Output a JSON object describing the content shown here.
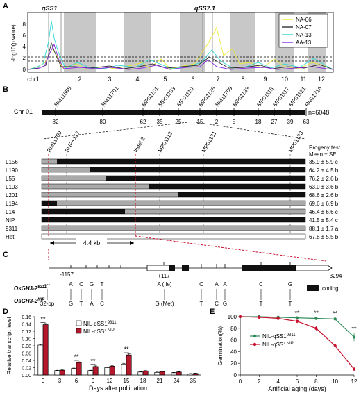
{
  "panels": [
    "A",
    "B",
    "C",
    "D",
    "E"
  ],
  "panelA": {
    "ylabel": "-log10(p value)",
    "yticks": [
      "8",
      "6",
      "4",
      "2",
      "0"
    ],
    "chromosomes": [
      "chr1",
      "2",
      "3",
      "4",
      "5",
      "6",
      "7",
      "8",
      "9",
      "10",
      "11",
      "12"
    ],
    "qtl_labels": [
      "qSS1",
      "qSS7.1"
    ],
    "legend": [
      {
        "name": "NA-06",
        "color": "#e8e832"
      },
      {
        "name": "NA-07",
        "color": "#303030"
      },
      {
        "name": "NA-13",
        "color": "#2ed6d6"
      },
      {
        "name": "AA-13",
        "color": "#8a2be2"
      }
    ]
  },
  "panelB": {
    "chromosome_label": "Chr 01",
    "n_label": "n=6048",
    "markers_top": [
      "RM11698",
      "RM11701",
      "MP01101",
      "MP01103",
      "MP01110",
      "MP01125",
      "RM11709",
      "MP01133",
      "MP01116",
      "MP01117",
      "MP01121",
      "RM11716"
    ],
    "recombinants": [
      "82",
      "80",
      "62",
      "35",
      "25",
      "15",
      "2",
      "5",
      "18",
      "27",
      "39",
      "63"
    ],
    "markers_fine": [
      "RM11709",
      "SNP+117",
      "Indel 2",
      "MP01113",
      "MP01131",
      "MP01133"
    ],
    "progeny_header": [
      "Progeny test",
      "Mean ± SE"
    ],
    "scale_label": "4.4 kb",
    "lines": [
      {
        "name": "L156",
        "value": "35.9 ± 5.9 c"
      },
      {
        "name": "L190",
        "value": "64.2 ± 4.5 b"
      },
      {
        "name": "L55",
        "value": "76.2 ± 2.6 b"
      },
      {
        "name": "L103",
        "value": "63.0 ± 3.6 b"
      },
      {
        "name": "L201",
        "value": "68.6 ± 2.6 b"
      },
      {
        "name": "L194",
        "value": "69.6 ± 6.9 b"
      },
      {
        "name": "L14",
        "value": "46.4 ± 6.6 c"
      },
      {
        "name": "NIP",
        "value": "41.5 ± 5.4 c"
      },
      {
        "name": "9311",
        "value": "88.1 ± 1.7 a"
      },
      {
        "name": "Het",
        "value": "67.8 ± 5.5 b"
      }
    ]
  },
  "panelC": {
    "pos_left": "-1157",
    "pos_mid": "+117",
    "pos_right": "+3294",
    "row1_label": "OsGH3-2",
    "row1_sup": "9311",
    "row2_label": "OsGH3-2",
    "row2_sup": "NIP",
    "row1_alleles": [
      "---",
      "A",
      "C",
      "G",
      "T",
      "A (Ile)",
      "C",
      "A",
      "A",
      "C",
      "G"
    ],
    "row2_alleles": [
      "32-bp",
      "G",
      "T",
      "A",
      "C",
      "G (Met)",
      "T",
      "C",
      "G",
      "T",
      "T"
    ],
    "legend_coding": "coding"
  },
  "chart_data": [
    {
      "type": "bar",
      "title": "",
      "xlabel": "Days after pollination",
      "ylabel": "Relative transcript level",
      "ylim": [
        0,
        0.16
      ],
      "yticks": [
        "0.00",
        "0.02",
        "0.04",
        "0.06",
        "0.08",
        "0.10",
        "0.12",
        "0.14",
        "0.16"
      ],
      "categories": [
        "0",
        "3",
        "6",
        "9",
        "12",
        "15",
        "18",
        "21",
        "24",
        "35"
      ],
      "series": [
        {
          "name": "NIL-qSS1",
          "sup": "9311",
          "color": "#ffffff",
          "values": [
            0.082,
            0.012,
            0.018,
            0.012,
            0.02,
            0.03,
            0.008,
            0.007,
            0.006,
            0.003
          ],
          "errors": [
            0.002,
            0.001,
            0.001,
            0.001,
            0.002,
            0.002,
            0.001,
            0.001,
            0.001,
            0.001
          ]
        },
        {
          "name": "NIL-qSS1",
          "sup": "NIP",
          "color": "#b5172c",
          "values": [
            0.138,
            0.013,
            0.034,
            0.023,
            0.024,
            0.055,
            0.011,
            0.009,
            0.008,
            0.004
          ],
          "errors": [
            0.003,
            0.001,
            0.002,
            0.002,
            0.002,
            0.003,
            0.001,
            0.001,
            0.001,
            0.001
          ]
        }
      ],
      "significance": [
        {
          "category": "0",
          "label": "**"
        },
        {
          "category": "6",
          "label": "**"
        },
        {
          "category": "9",
          "label": "**"
        },
        {
          "category": "15",
          "label": "**"
        }
      ]
    },
    {
      "type": "line",
      "title": "",
      "xlabel": "Artificial aging (days)",
      "ylabel": "Germination(%)",
      "xlim": [
        0,
        12
      ],
      "ylim": [
        0,
        100
      ],
      "xticks": [
        "0",
        "2",
        "4",
        "6",
        "8",
        "10",
        "12"
      ],
      "yticks": [
        "0",
        "20",
        "40",
        "60",
        "80",
        "100"
      ],
      "x": [
        0,
        2,
        4,
        6,
        8,
        10,
        12
      ],
      "series": [
        {
          "name": "NIL-qSS1",
          "sup": "9311",
          "color": "#2e8b57",
          "values": [
            100,
            100,
            99,
            98,
            97,
            96,
            65
          ],
          "errors": [
            0,
            0,
            1,
            1,
            2,
            2,
            7
          ]
        },
        {
          "name": "NIL-qSS1",
          "sup": "NIP",
          "color": "#c8102e",
          "values": [
            100,
            99,
            97,
            92,
            80,
            50,
            10
          ],
          "errors": [
            0,
            1,
            2,
            3,
            4,
            3,
            4
          ]
        }
      ],
      "significance": [
        {
          "x": 6,
          "label": "**"
        },
        {
          "x": 8,
          "label": "**"
        },
        {
          "x": 10,
          "label": "**"
        },
        {
          "x": 12,
          "label": "**"
        }
      ]
    }
  ]
}
